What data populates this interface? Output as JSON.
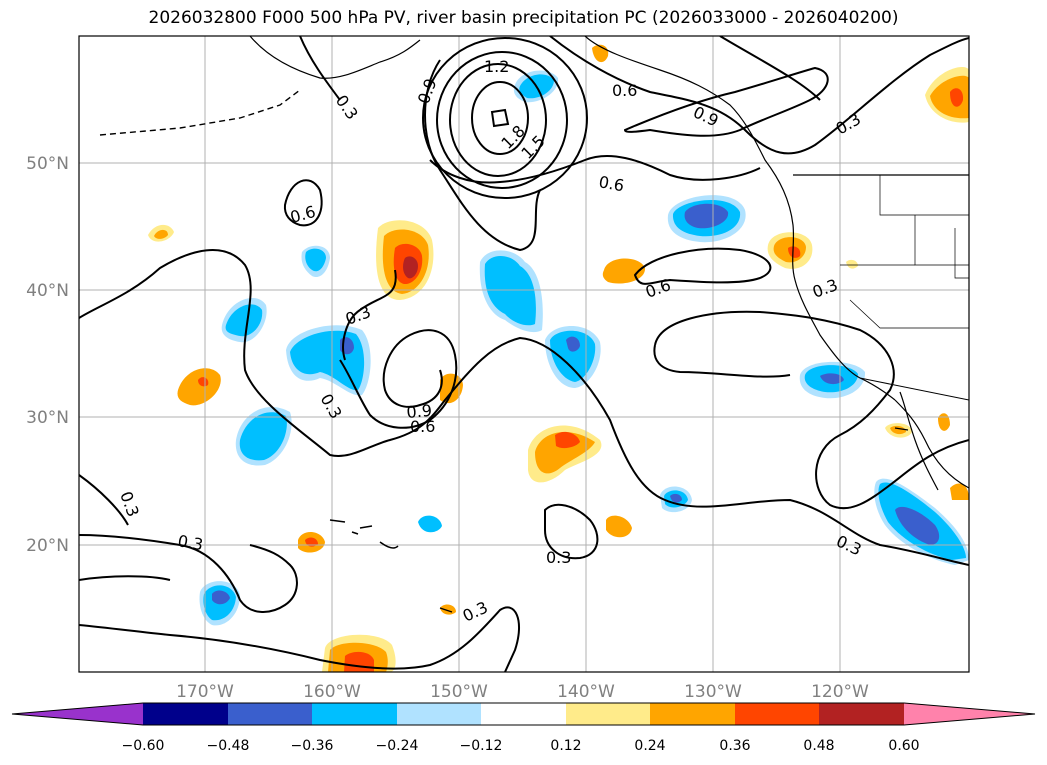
{
  "title": "2026032800 F000 500 hPa PV, river basin precipitation PC (2026033000 - 2026040200)",
  "axes": {
    "lat_labels": [
      "50°N",
      "40°N",
      "30°N",
      "20°N"
    ],
    "lon_labels": [
      "170°W",
      "160°W",
      "150°W",
      "140°W",
      "130°W",
      "120°W"
    ]
  },
  "contour_labels": [
    "1.2",
    "1.8",
    "1.5",
    "0.9",
    "0.3",
    "0.6",
    "0.9",
    "0.3",
    "0.6",
    "0.6",
    "0.6",
    "0.3",
    "0.3",
    "0.9",
    "0.6",
    "0.3",
    "0.3",
    "0.3",
    "0.3",
    "0.3",
    "0.3"
  ],
  "colorbar": {
    "ticks": [
      "−0.60",
      "−0.48",
      "−0.36",
      "−0.24",
      "−0.12",
      "0.12",
      "0.24",
      "0.36",
      "0.48",
      "0.60"
    ],
    "colors": [
      "#9932cc",
      "#00008b",
      "#3a5fcd",
      "#00bfff",
      "#b0e2ff",
      "#ffffff",
      "#ffeb8a",
      "#ffa500",
      "#ff4500",
      "#b22222",
      "#ff82ab"
    ]
  },
  "colors": {
    "line": "#000000",
    "grid": "#b0b0b0",
    "axis_text": "#808080"
  }
}
